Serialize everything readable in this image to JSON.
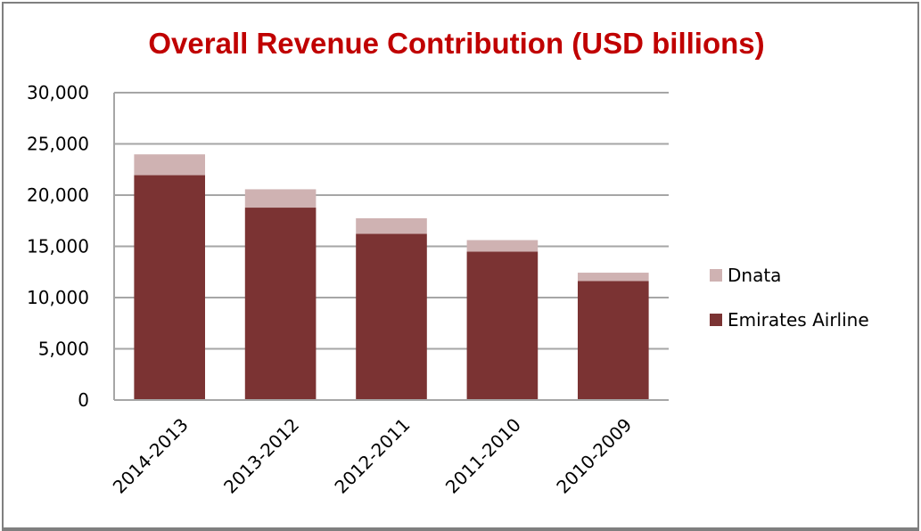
{
  "chart_data": {
    "type": "bar",
    "stacked": true,
    "title": "Overall Revenue Contribution (USD billions)",
    "xlabel": "",
    "ylabel": "",
    "categories": [
      "2014-2013",
      "2013-2012",
      "2012-2011",
      "2011-2010",
      "2010-2009"
    ],
    "series": [
      {
        "name": "Emirates Airline",
        "color": "#7b3333",
        "values": [
          21950,
          18780,
          16220,
          14480,
          11610
        ]
      },
      {
        "name": "Dnata",
        "color": "#cfb2b2",
        "values": [
          2030,
          1790,
          1520,
          1130,
          820
        ]
      }
    ],
    "ylim": [
      0,
      30000
    ],
    "yticks": [
      0,
      5000,
      10000,
      15000,
      20000,
      25000,
      30000
    ],
    "ytick_labels": [
      "0",
      "5,000",
      "10,000",
      "15,000",
      "20,000",
      "25,000",
      "30,000"
    ],
    "grid": true,
    "legend": {
      "position": "right",
      "entries": [
        "Dnata",
        "Emirates Airline"
      ]
    },
    "title_color": "#c00000"
  }
}
